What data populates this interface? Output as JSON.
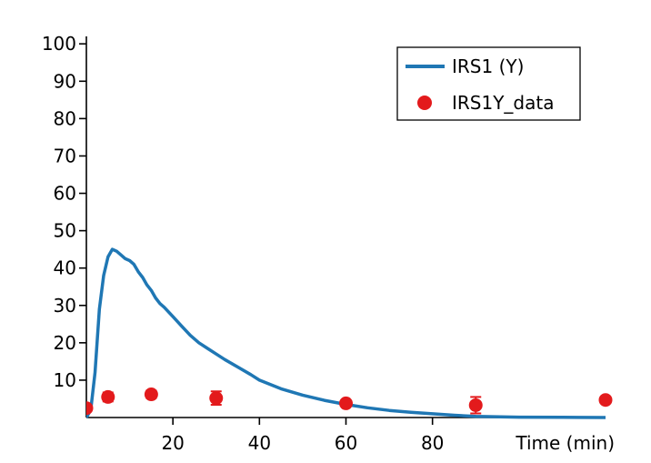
{
  "chart_data": {
    "type": "line",
    "xlabel": "Time (min)",
    "ylabel": "",
    "xlim": [
      0,
      120
    ],
    "ylim": [
      0,
      102
    ],
    "xticks": [
      20,
      40,
      60,
      80
    ],
    "yticks": [
      10,
      20,
      30,
      40,
      50,
      60,
      70,
      80,
      90,
      100
    ],
    "grid": false,
    "legend_position": "top-right",
    "series": [
      {
        "name": "IRS1 (Y)",
        "kind": "line",
        "color": "#1f77b4",
        "x": [
          0,
          1,
          2,
          3,
          4,
          5,
          6,
          7,
          8,
          9,
          10,
          11,
          12,
          13,
          14,
          15,
          16,
          17,
          18,
          20,
          22,
          24,
          26,
          28,
          30,
          32,
          35,
          38,
          40,
          45,
          50,
          55,
          60,
          65,
          70,
          75,
          80,
          85,
          90,
          100,
          110,
          120
        ],
        "y": [
          0,
          2,
          12,
          29,
          38,
          43,
          45,
          44.5,
          43.5,
          42.5,
          42,
          41,
          39,
          37.5,
          35.5,
          34,
          32,
          30.5,
          29.5,
          27,
          24.5,
          22,
          20,
          18.5,
          17,
          15.5,
          13.5,
          11.5,
          10,
          7.7,
          6,
          4.6,
          3.5,
          2.6,
          1.9,
          1.4,
          1,
          0.6,
          0.3,
          0.1,
          0.05,
          0
        ]
      },
      {
        "name": "IRS1Y_data",
        "kind": "scatter",
        "color": "#e31a1c",
        "x": [
          0,
          5,
          15,
          30,
          60,
          90,
          120
        ],
        "y": [
          2.5,
          5.5,
          6.2,
          5.2,
          3.8,
          3.3,
          4.7
        ],
        "err": [
          0.5,
          1.2,
          1,
          1.8,
          0.8,
          2.2,
          0.6
        ]
      }
    ]
  }
}
